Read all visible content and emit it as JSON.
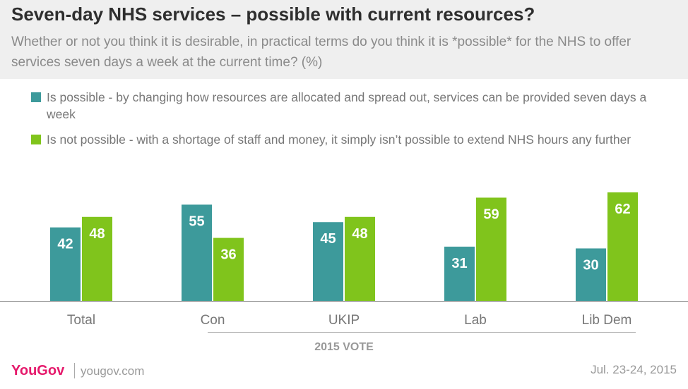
{
  "title": "Seven-day NHS services – possible with current resources?",
  "subtitle": "Whether or not you think it is desirable, in practical terms do you think it is *possible* for the NHS to offer services seven days a week at the current time? (%)",
  "colors": {
    "possible": "#3d9a9b",
    "not_possible": "#80c41c",
    "header_bg": "#efefef",
    "brand": "#e5196b"
  },
  "chart_data": {
    "type": "bar",
    "categories": [
      "Total",
      "Con",
      "UKIP",
      "Lab",
      "Lib Dem"
    ],
    "series": [
      {
        "name": "Is possible - by changing how resources are allocated and spread out, services can be provided seven days a week",
        "values": [
          42,
          55,
          45,
          31,
          30
        ]
      },
      {
        "name": "Is not possible - with a shortage of staff and money, it simply isn’t possible to extend NHS hours any further",
        "values": [
          48,
          36,
          48,
          59,
          62
        ]
      }
    ],
    "group_label": "2015 VOTE",
    "ylim": [
      0,
      62
    ],
    "legend_position": "top"
  },
  "footer": {
    "brand": "YouGov",
    "site": "yougov.com",
    "date": "Jul. 23-24, 2015"
  }
}
